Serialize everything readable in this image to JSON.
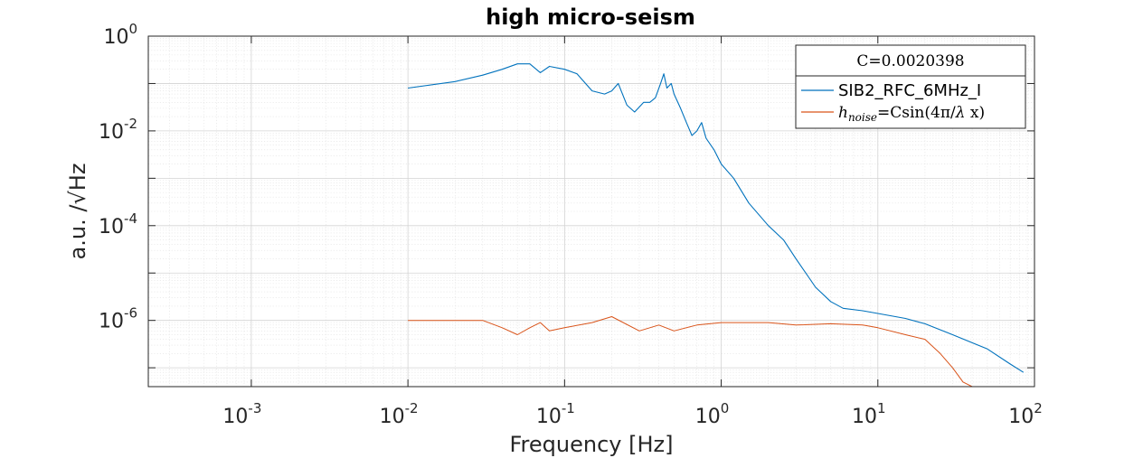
{
  "chart_data": {
    "type": "line",
    "title": "high micro-seism",
    "xlabel": "Frequency [Hz]",
    "ylabel": "a.u. /√Hz",
    "x_scale": "log",
    "y_scale": "log",
    "xlim": [
      0.00022,
      100
    ],
    "ylim": [
      4e-08,
      1
    ],
    "grid": "major and minor",
    "legend_position": "top-right",
    "x_ticks": [
      {
        "base": "10",
        "exp": "-3",
        "value": 0.001
      },
      {
        "base": "10",
        "exp": "-2",
        "value": 0.01
      },
      {
        "base": "10",
        "exp": "-1",
        "value": 0.1
      },
      {
        "base": "10",
        "exp": "0",
        "value": 1
      },
      {
        "base": "10",
        "exp": "1",
        "value": 10
      },
      {
        "base": "10",
        "exp": "2",
        "value": 100
      }
    ],
    "y_ticks": [
      {
        "base": "10",
        "exp": "0",
        "value": 1
      },
      {
        "base": "10",
        "exp": "-2",
        "value": 0.01
      },
      {
        "base": "10",
        "exp": "-4",
        "value": 0.0001
      },
      {
        "base": "10",
        "exp": "-6",
        "value": 1e-06
      }
    ],
    "legend": {
      "header": "C=0.0020398",
      "entries": [
        "SIB2_RFC_6MHz_I",
        "h_noise=Csin(4π/λ x)"
      ]
    },
    "series": [
      {
        "name": "SIB2_RFC_6MHz_I",
        "color": "#0072BD",
        "points": [
          [
            0.01,
            0.08
          ],
          [
            0.02,
            0.11
          ],
          [
            0.03,
            0.15
          ],
          [
            0.04,
            0.2
          ],
          [
            0.05,
            0.26
          ],
          [
            0.06,
            0.26
          ],
          [
            0.07,
            0.17
          ],
          [
            0.08,
            0.23
          ],
          [
            0.1,
            0.2
          ],
          [
            0.12,
            0.16
          ],
          [
            0.15,
            0.07
          ],
          [
            0.18,
            0.06
          ],
          [
            0.2,
            0.07
          ],
          [
            0.22,
            0.1
          ],
          [
            0.25,
            0.035
          ],
          [
            0.28,
            0.025
          ],
          [
            0.32,
            0.04
          ],
          [
            0.35,
            0.04
          ],
          [
            0.38,
            0.05
          ],
          [
            0.41,
            0.1
          ],
          [
            0.43,
            0.16
          ],
          [
            0.45,
            0.08
          ],
          [
            0.48,
            0.1
          ],
          [
            0.5,
            0.06
          ],
          [
            0.55,
            0.03
          ],
          [
            0.6,
            0.015
          ],
          [
            0.65,
            0.008
          ],
          [
            0.7,
            0.01
          ],
          [
            0.75,
            0.015
          ],
          [
            0.8,
            0.007
          ],
          [
            0.9,
            0.004
          ],
          [
            1,
            0.002
          ],
          [
            1.2,
            0.001
          ],
          [
            1.5,
            0.0003
          ],
          [
            2,
            0.0001
          ],
          [
            2.5,
            5e-05
          ],
          [
            3,
            2e-05
          ],
          [
            4,
            5e-06
          ],
          [
            5,
            2.5e-06
          ],
          [
            6,
            1.8e-06
          ],
          [
            8,
            1.6e-06
          ],
          [
            10,
            1.4e-06
          ],
          [
            15,
            1.1e-06
          ],
          [
            20,
            8.5e-07
          ],
          [
            30,
            5e-07
          ],
          [
            50,
            2.5e-07
          ],
          [
            70,
            1.2e-07
          ],
          [
            85,
            8e-08
          ]
        ]
      },
      {
        "name": "h_noise=Csin(4π/λ x)",
        "color": "#D95319",
        "points": [
          [
            0.01,
            1e-06
          ],
          [
            0.02,
            1e-06
          ],
          [
            0.03,
            1e-06
          ],
          [
            0.04,
            7e-07
          ],
          [
            0.05,
            5e-07
          ],
          [
            0.06,
            7e-07
          ],
          [
            0.07,
            9e-07
          ],
          [
            0.08,
            6e-07
          ],
          [
            0.1,
            7e-07
          ],
          [
            0.15,
            9e-07
          ],
          [
            0.2,
            1.2e-06
          ],
          [
            0.3,
            6e-07
          ],
          [
            0.4,
            8e-07
          ],
          [
            0.5,
            6e-07
          ],
          [
            0.7,
            8e-07
          ],
          [
            1,
            9e-07
          ],
          [
            2,
            9e-07
          ],
          [
            3,
            8e-07
          ],
          [
            5,
            8.5e-07
          ],
          [
            8,
            8e-07
          ],
          [
            10,
            7e-07
          ],
          [
            15,
            5e-07
          ],
          [
            20,
            4e-07
          ],
          [
            25,
            2e-07
          ],
          [
            30,
            1e-07
          ],
          [
            35,
            5e-08
          ],
          [
            40,
            4e-08
          ]
        ]
      }
    ]
  }
}
